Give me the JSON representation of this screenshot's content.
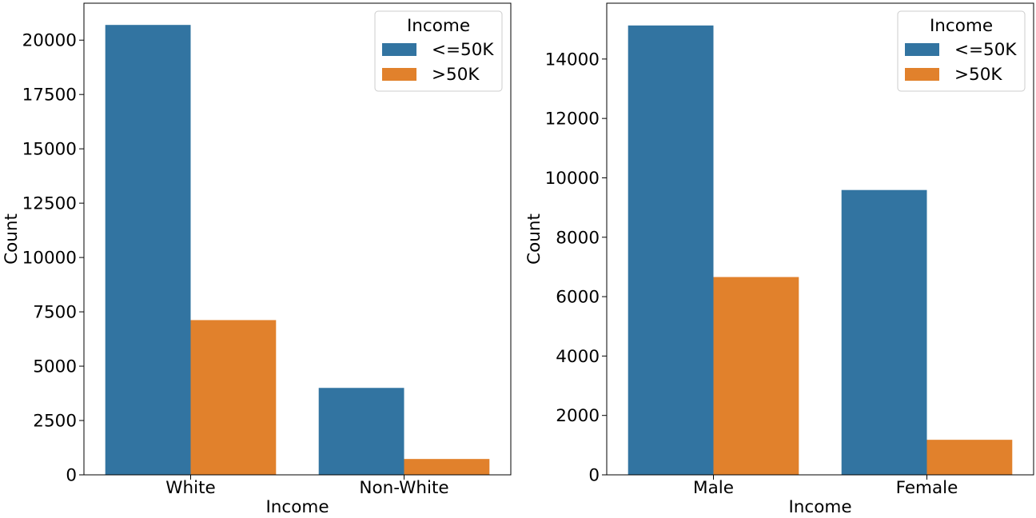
{
  "colors": {
    "le50k": "#3274a1",
    "gt50k": "#e1812c",
    "axes": "#000000",
    "background": "#ffffff"
  },
  "chart_data": [
    {
      "type": "bar",
      "categories": [
        "White",
        "Non-White"
      ],
      "series": [
        {
          "name": "<=50K",
          "values": [
            20700,
            4000
          ]
        },
        {
          "name": ">50K",
          "values": [
            7120,
            730
          ]
        }
      ],
      "xlabel": "Income",
      "ylabel": "Count",
      "ylim": [
        0,
        21700
      ],
      "yticks": [
        0,
        2500,
        5000,
        7500,
        10000,
        12500,
        15000,
        17500,
        20000
      ],
      "ytick_labels": [
        "0",
        "2500",
        "5000",
        "7500",
        "10000",
        "12500",
        "15000",
        "17500",
        "20000"
      ],
      "legend": {
        "title": "Income",
        "placement": "top-right"
      },
      "grid": false
    },
    {
      "type": "bar",
      "categories": [
        "Male",
        "Female"
      ],
      "series": [
        {
          "name": "<=50K",
          "values": [
            15130,
            9590
          ]
        },
        {
          "name": ">50K",
          "values": [
            6660,
            1180
          ]
        }
      ],
      "xlabel": "Income",
      "ylabel": "Count",
      "ylim": [
        0,
        15880
      ],
      "yticks": [
        0,
        2000,
        4000,
        6000,
        8000,
        10000,
        12000,
        14000
      ],
      "ytick_labels": [
        "0",
        "2000",
        "4000",
        "6000",
        "8000",
        "10000",
        "12000",
        "14000"
      ],
      "legend": {
        "title": "Income",
        "placement": "top-right"
      },
      "grid": false
    }
  ]
}
